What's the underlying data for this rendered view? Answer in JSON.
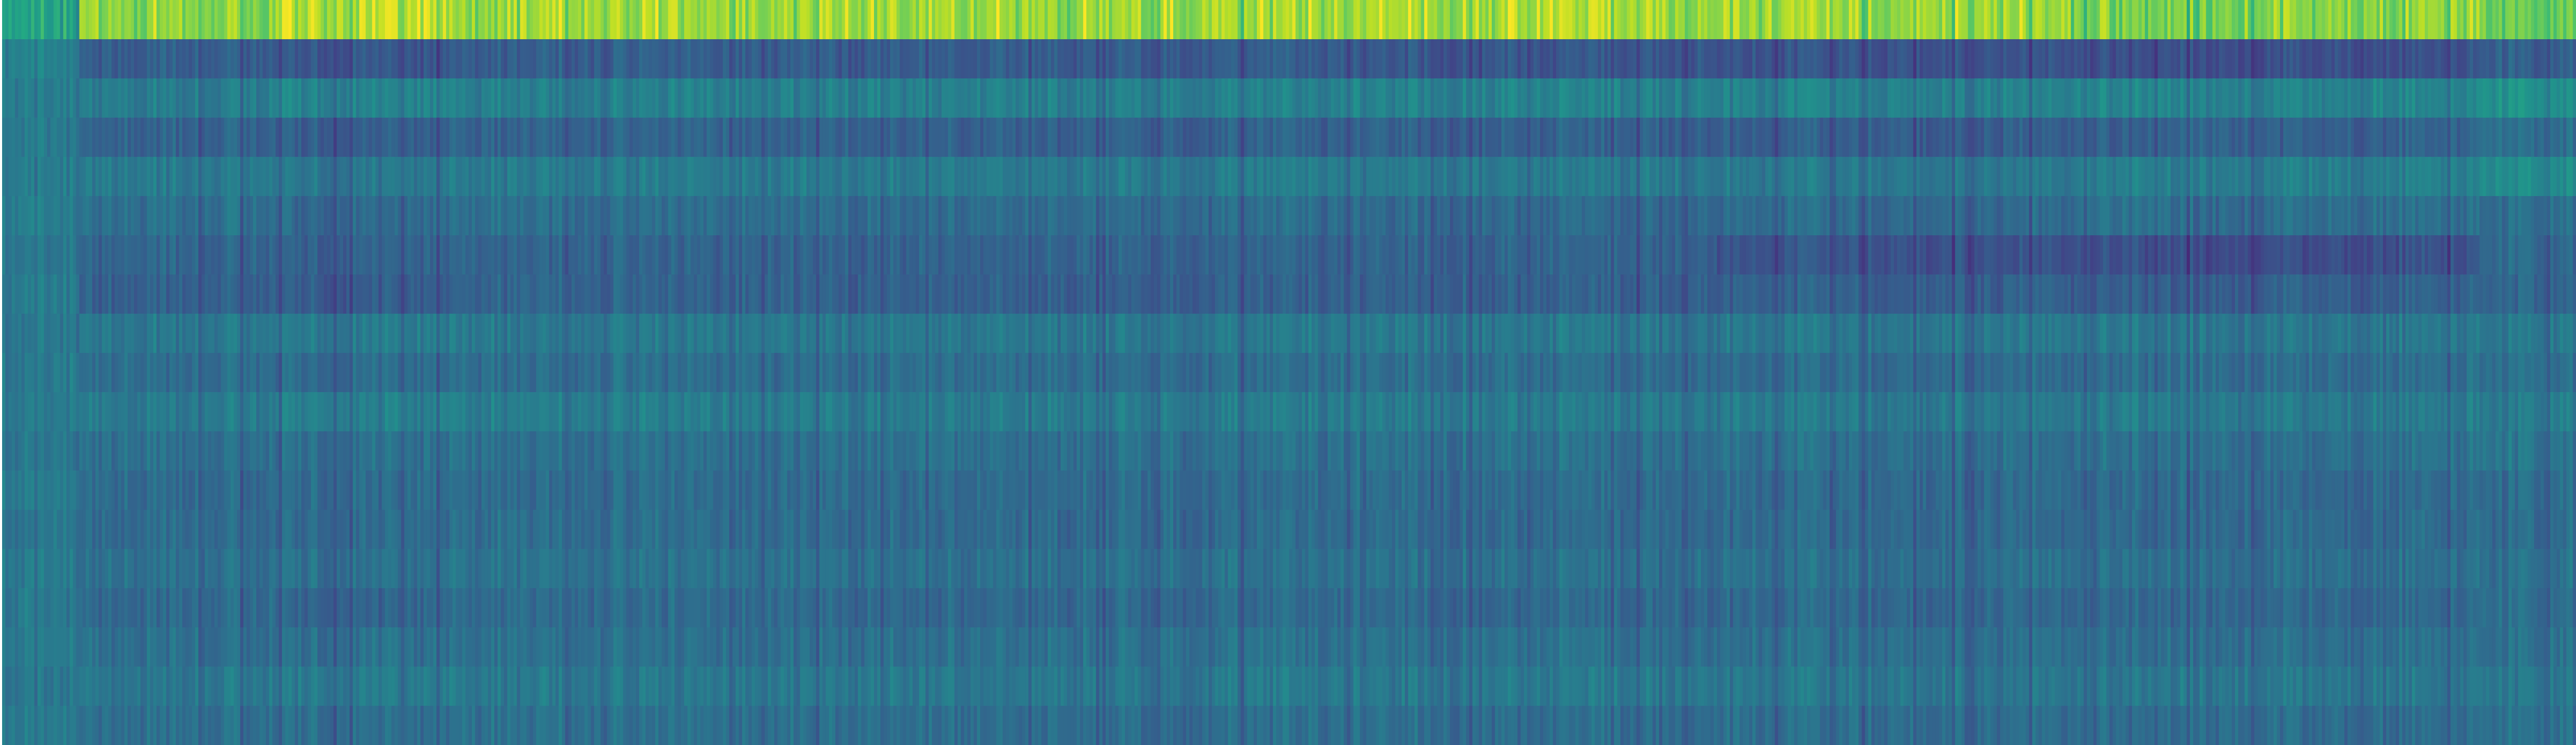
{
  "chart_data": {
    "type": "heatmap",
    "title": "",
    "xlabel": "",
    "ylabel": "",
    "colormap": "viridis",
    "grid": false,
    "legend": "none",
    "n_rows": 19,
    "n_cols": 800,
    "value_range": [
      0,
      1
    ],
    "cell_seed": 97,
    "column_groups": [
      {
        "name": "g0",
        "start": 0,
        "end": 24,
        "row_means": [
          0.57,
          0.43,
          0.41,
          0.4,
          0.41,
          0.41,
          0.39,
          0.4,
          0.39,
          0.4,
          0.4,
          0.39,
          0.41,
          0.39,
          0.4,
          0.4,
          0.4,
          0.39,
          0.4
        ]
      },
      {
        "name": "g1",
        "start": 24,
        "end": 85,
        "row_means": [
          0.82,
          0.3,
          0.42,
          0.32,
          0.41,
          0.37,
          0.33,
          0.31,
          0.4,
          0.36,
          0.41,
          0.37,
          0.35,
          0.35,
          0.37,
          0.35,
          0.37,
          0.4,
          0.37
        ]
      },
      {
        "name": "g2",
        "start": 85,
        "end": 140,
        "row_means": [
          0.9,
          0.27,
          0.45,
          0.3,
          0.4,
          0.34,
          0.31,
          0.29,
          0.41,
          0.35,
          0.43,
          0.37,
          0.35,
          0.35,
          0.37,
          0.33,
          0.37,
          0.41,
          0.36
        ]
      },
      {
        "name": "g3",
        "start": 140,
        "end": 257,
        "row_means": [
          0.85,
          0.3,
          0.43,
          0.32,
          0.41,
          0.36,
          0.32,
          0.32,
          0.4,
          0.36,
          0.42,
          0.37,
          0.35,
          0.36,
          0.38,
          0.35,
          0.37,
          0.4,
          0.37
        ]
      },
      {
        "name": "g4",
        "start": 257,
        "end": 420,
        "row_means": [
          0.86,
          0.29,
          0.43,
          0.31,
          0.41,
          0.35,
          0.32,
          0.31,
          0.4,
          0.36,
          0.41,
          0.37,
          0.35,
          0.35,
          0.37,
          0.34,
          0.37,
          0.4,
          0.36
        ]
      },
      {
        "name": "g5",
        "start": 420,
        "end": 533,
        "row_means": [
          0.88,
          0.27,
          0.44,
          0.31,
          0.41,
          0.34,
          0.32,
          0.31,
          0.4,
          0.36,
          0.41,
          0.37,
          0.35,
          0.35,
          0.37,
          0.34,
          0.37,
          0.4,
          0.36
        ]
      },
      {
        "name": "g6",
        "start": 533,
        "end": 643,
        "row_means": [
          0.86,
          0.26,
          0.44,
          0.3,
          0.4,
          0.35,
          0.26,
          0.31,
          0.4,
          0.35,
          0.41,
          0.37,
          0.35,
          0.35,
          0.37,
          0.34,
          0.37,
          0.4,
          0.36
        ]
      },
      {
        "name": "g7",
        "start": 643,
        "end": 673,
        "row_means": [
          0.8,
          0.25,
          0.46,
          0.31,
          0.43,
          0.38,
          0.25,
          0.3,
          0.4,
          0.36,
          0.42,
          0.37,
          0.35,
          0.35,
          0.37,
          0.34,
          0.37,
          0.4,
          0.36
        ]
      },
      {
        "name": "g8",
        "start": 673,
        "end": 705,
        "row_means": [
          0.8,
          0.25,
          0.44,
          0.32,
          0.42,
          0.35,
          0.24,
          0.3,
          0.4,
          0.36,
          0.41,
          0.37,
          0.35,
          0.35,
          0.37,
          0.34,
          0.37,
          0.4,
          0.36
        ]
      },
      {
        "name": "g9",
        "start": 705,
        "end": 770,
        "row_means": [
          0.82,
          0.25,
          0.45,
          0.31,
          0.43,
          0.37,
          0.25,
          0.31,
          0.4,
          0.36,
          0.41,
          0.37,
          0.35,
          0.35,
          0.37,
          0.34,
          0.37,
          0.4,
          0.36
        ]
      },
      {
        "name": "g10",
        "start": 770,
        "end": 800,
        "row_means": [
          0.78,
          0.3,
          0.5,
          0.36,
          0.48,
          0.36,
          0.34,
          0.33,
          0.4,
          0.37,
          0.41,
          0.39,
          0.35,
          0.35,
          0.37,
          0.36,
          0.37,
          0.4,
          0.37
        ]
      }
    ]
  }
}
